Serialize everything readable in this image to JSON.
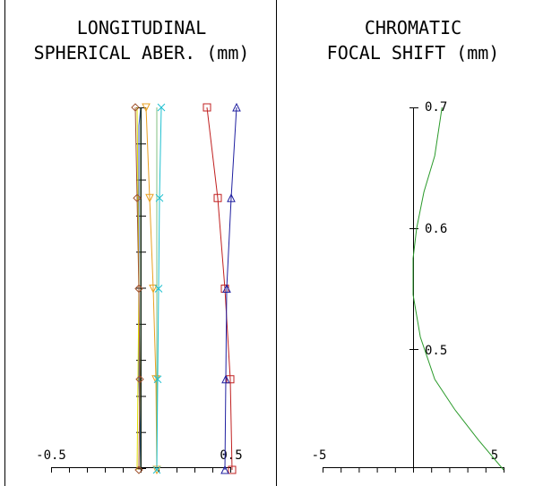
{
  "chart_data": [
    {
      "type": "line",
      "title": [
        "LONGITUDINAL",
        "SPHERICAL ABER. (mm)"
      ],
      "xlim": [
        -0.5,
        0.5
      ],
      "ylim": [
        0,
        1
      ],
      "x_tick_labels": [
        "-0.5",
        "0.5"
      ],
      "grid": false,
      "series": [
        {
          "color": "#3d5fbf",
          "marker": "none",
          "x": [
            0.0,
            -0.01,
            -0.01,
            -0.01,
            -0.01,
            0.0
          ],
          "y": [
            0.0,
            0.25,
            0.5,
            0.75,
            0.95,
            1.0
          ]
        },
        {
          "color": "#1e3f1e",
          "marker": "none",
          "x": [
            0.0,
            0.0,
            0.0,
            0.0,
            0.0,
            0.0
          ],
          "y": [
            0.0,
            0.25,
            0.5,
            0.75,
            0.95,
            1.0
          ]
        },
        {
          "color": "#e0e000",
          "marker": "none",
          "x": [
            -0.02,
            -0.015,
            -0.01,
            -0.015,
            -0.02
          ],
          "y": [
            0.0,
            0.25,
            0.5,
            0.75,
            1.0
          ]
        },
        {
          "color": "#a0522d",
          "marker": "diamond",
          "x": [
            -0.01,
            -0.005,
            -0.01,
            -0.02,
            -0.03
          ],
          "y": [
            0.0,
            0.25,
            0.5,
            0.75,
            1.0
          ]
        },
        {
          "color": "#e8a020",
          "marker": "triangle-down",
          "x": [
            0.09,
            0.085,
            0.07,
            0.05,
            0.03
          ],
          "y": [
            0.0,
            0.25,
            0.5,
            0.75,
            1.0
          ]
        },
        {
          "color": "#80c080",
          "marker": "none",
          "x": [
            0.09,
            0.09,
            0.09,
            0.09,
            0.09
          ],
          "y": [
            0.0,
            0.25,
            0.5,
            0.75,
            1.0
          ]
        },
        {
          "color": "#20c0d0",
          "marker": "x",
          "x": [
            0.09,
            0.095,
            0.1,
            0.105,
            0.115
          ],
          "y": [
            0.0,
            0.25,
            0.5,
            0.75,
            1.0
          ]
        },
        {
          "color": "#c02020",
          "marker": "square",
          "x": [
            0.51,
            0.5,
            0.47,
            0.43,
            0.37
          ],
          "y": [
            0.0,
            0.25,
            0.5,
            0.75,
            1.0
          ]
        },
        {
          "color": "#2020a0",
          "marker": "triangle-up",
          "x": [
            0.47,
            0.475,
            0.48,
            0.505,
            0.535
          ],
          "y": [
            0.0,
            0.25,
            0.5,
            0.75,
            1.0
          ]
        }
      ]
    },
    {
      "type": "line",
      "title": [
        "CHROMATIC",
        "FOCAL SHIFT (mm)"
      ],
      "xlim": [
        -5,
        5
      ],
      "ylim": [
        0.4,
        0.7
      ],
      "x_tick_labels": [
        "-5",
        "5"
      ],
      "y_tick_labels": [
        "0.7",
        "0.6",
        "0.5"
      ],
      "grid": false,
      "series": [
        {
          "color": "#2a9a2a",
          "marker": "none",
          "x": [
            5.0,
            3.6,
            2.3,
            1.2,
            0.4,
            0.0,
            0.0,
            0.2,
            0.6,
            1.2,
            1.6
          ],
          "y": [
            0.4,
            0.425,
            0.45,
            0.475,
            0.51,
            0.545,
            0.575,
            0.6,
            0.63,
            0.66,
            0.7
          ]
        }
      ]
    }
  ]
}
